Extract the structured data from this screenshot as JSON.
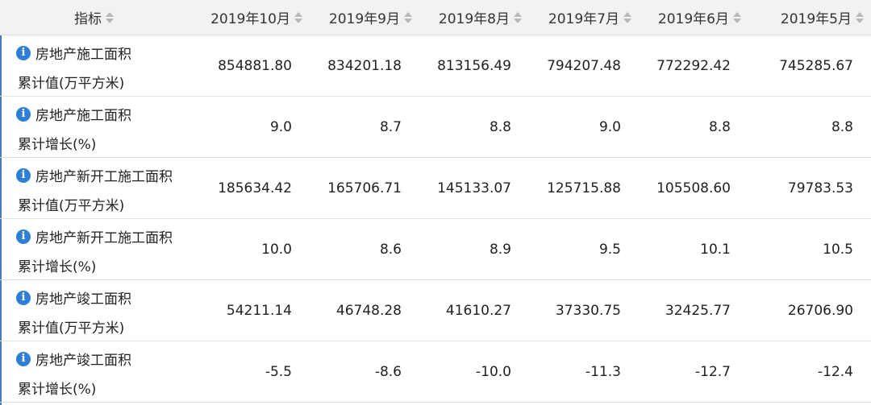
{
  "header": {
    "indicator_label": "指标",
    "columns": [
      "2019年10月",
      "2019年9月",
      "2019年8月",
      "2019年7月",
      "2019年6月",
      "2019年5月"
    ]
  },
  "rows": [
    {
      "line1": "房地产施工面积",
      "line2": "累计值(万平方米)",
      "values": [
        "854881.80",
        "834201.18",
        "813156.49",
        "794207.48",
        "772292.42",
        "745285.67"
      ]
    },
    {
      "line1": "房地产施工面积",
      "line2": "累计增长(%)",
      "values": [
        "9.0",
        "8.7",
        "8.8",
        "9.0",
        "8.8",
        "8.8"
      ]
    },
    {
      "line1": "房地产新开工施工面积",
      "line2": "累计值(万平方米)",
      "values": [
        "185634.42",
        "165706.71",
        "145133.07",
        "125715.88",
        "105508.60",
        "79783.53"
      ]
    },
    {
      "line1": "房地产新开工施工面积",
      "line2": "累计增长(%)",
      "values": [
        "10.0",
        "8.6",
        "8.9",
        "9.5",
        "10.1",
        "10.5"
      ]
    },
    {
      "line1": "房地产竣工面积",
      "line2": "累计值(万平方米)",
      "values": [
        "54211.14",
        "46748.28",
        "41610.27",
        "37330.75",
        "32425.77",
        "26706.90"
      ]
    },
    {
      "line1": "房地产竣工面积",
      "line2": "累计增长(%)",
      "values": [
        "-5.5",
        "-8.6",
        "-10.0",
        "-11.3",
        "-12.7",
        "-12.4"
      ]
    }
  ],
  "icons": {
    "sort": "sort-arrows-icon",
    "info": "info-icon"
  },
  "colors": {
    "header_bg": "#f2f2f2",
    "info_icon": "#2f7fd6"
  }
}
